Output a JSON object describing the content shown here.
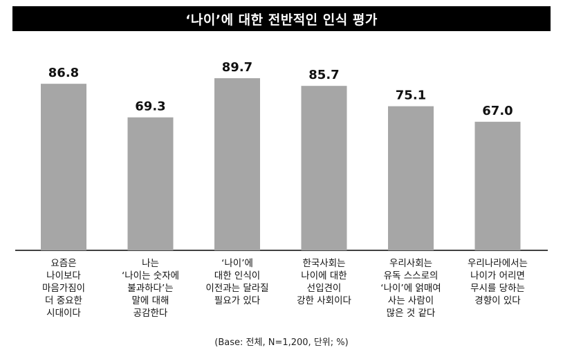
{
  "title": "‘나이’에 대한 전반적인 인식 평가",
  "footnote": "(Base: 전체, N=1,200, 단위; %)",
  "chart_data": {
    "type": "bar",
    "categories": [
      [
        "요즘은",
        "나이보다",
        "마음가짐이",
        "더 중요한",
        "시대이다"
      ],
      [
        "나는",
        "‘나이는 숫자에",
        "불과하다’는",
        "말에 대해",
        "공감한다"
      ],
      [
        "‘나이’에",
        "대한 인식이",
        "이전과는 달라질",
        "필요가 있다"
      ],
      [
        "한국사회는",
        "나이에 대한",
        "선입견이",
        "강한 사회이다"
      ],
      [
        "우리사회는",
        "유독 스스로의",
        "‘나이’에 얽매여",
        "사는 사람이",
        "많은 것 같다"
      ],
      [
        "우리나라에서는",
        "나이가 어리면",
        "무시를 당하는",
        "경향이 있다"
      ]
    ],
    "values": [
      86.8,
      69.3,
      89.7,
      85.7,
      75.1,
      67.0
    ],
    "value_labels": [
      "86.8",
      "69.3",
      "89.7",
      "85.7",
      "75.1",
      "67.0"
    ],
    "bar_color": "#a6a6a6",
    "baseline_color": "#000000",
    "ylim": [
      0,
      100
    ],
    "grid": false
  }
}
